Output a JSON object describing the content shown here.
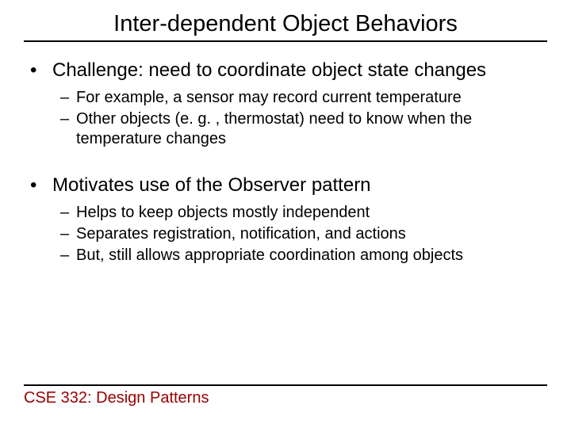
{
  "title": "Inter-dependent Object Behaviors",
  "sections": [
    {
      "bullet": "Challenge: need to coordinate object state changes",
      "subs": [
        "For example, a sensor may record current temperature",
        "Other objects (e. g. , thermostat) need to know when the temperature changes"
      ]
    },
    {
      "bullet": "Motivates use of the Observer pattern",
      "subs": [
        "Helps to keep objects mostly independent",
        "Separates registration, notification, and actions",
        "But, still allows appropriate coordination among objects"
      ]
    }
  ],
  "footer": "CSE 332: Design Patterns",
  "colors": {
    "title_color": "#000000",
    "body_color": "#000000",
    "footer_color": "#990000",
    "rule_color": "#000000",
    "background": "#ffffff"
  },
  "fonts": {
    "title_size": 29,
    "l1_size": 24,
    "l2_size": 20,
    "footer_size": 20
  }
}
